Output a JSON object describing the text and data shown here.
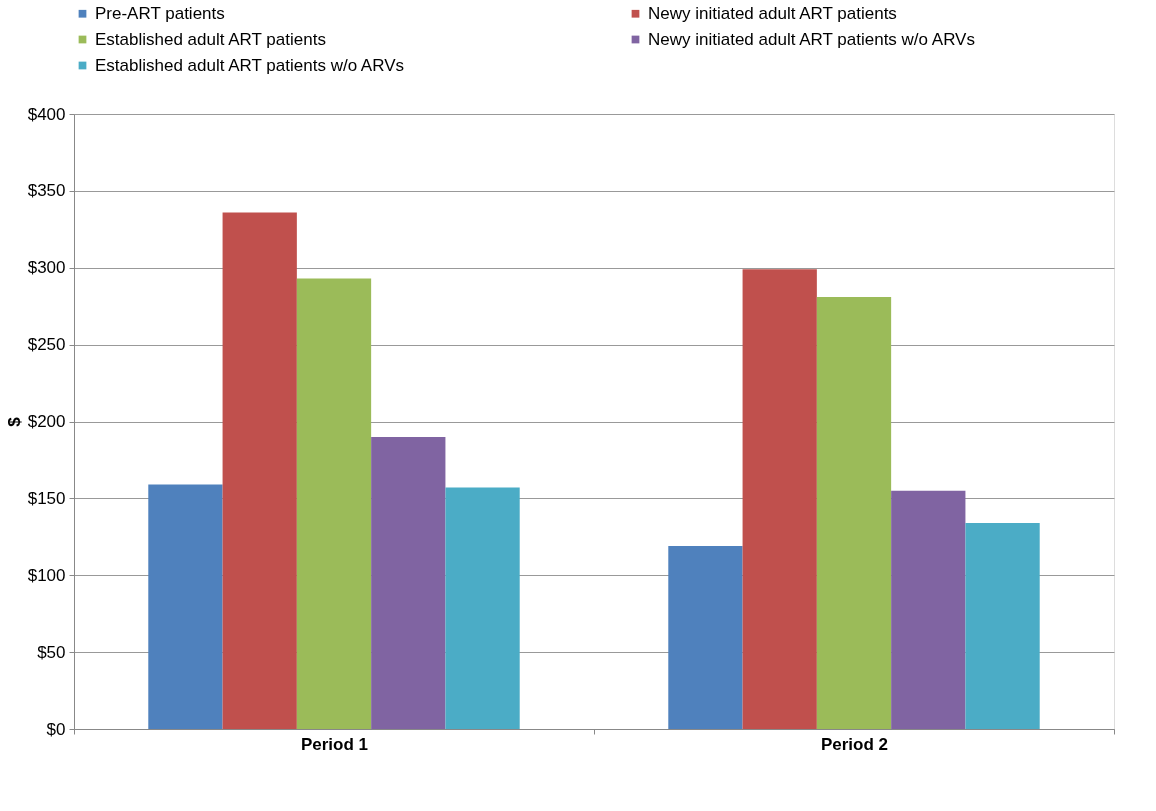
{
  "chart_data": {
    "type": "bar",
    "ylabel": "$",
    "categories": [
      "Period 1",
      "Period 2"
    ],
    "series": [
      {
        "name": "Pre-ART patients",
        "color": "#4f81bd",
        "values": [
          159,
          119
        ]
      },
      {
        "name": "Newy initiated adult ART patients",
        "color": "#c0504d",
        "values": [
          336,
          299
        ]
      },
      {
        "name": "Established adult ART patients",
        "color": "#9bbb59",
        "values": [
          293,
          281
        ]
      },
      {
        "name": "Newy initiated adult ART patients w/o ARVs",
        "color": "#8064a2",
        "values": [
          190,
          155
        ]
      },
      {
        "name": "Established adult ART patients w/o ARVs",
        "color": "#4bacc6",
        "values": [
          157,
          134
        ]
      }
    ],
    "ylim": [
      0,
      400
    ],
    "yticks": [
      {
        "value": 0,
        "label": "$0"
      },
      {
        "value": 50,
        "label": "$50"
      },
      {
        "value": 100,
        "label": "$100"
      },
      {
        "value": 150,
        "label": "$150"
      },
      {
        "value": 200,
        "label": "$200"
      },
      {
        "value": 250,
        "label": "$250"
      },
      {
        "value": 300,
        "label": "$300"
      },
      {
        "value": 350,
        "label": "$350"
      },
      {
        "value": 400,
        "label": "$400"
      }
    ],
    "grid": "y",
    "legend": "top"
  }
}
